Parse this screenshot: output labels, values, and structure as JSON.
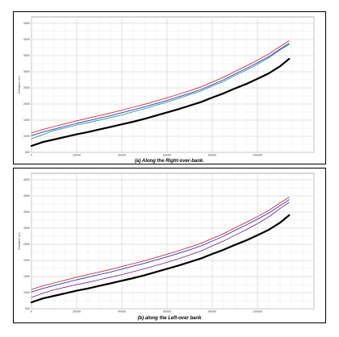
{
  "chart_data": [
    {
      "type": "line",
      "caption": "(a) Along the Right-over-bank.",
      "ylabel": "Elevation (m)",
      "xlabel": "",
      "x_ticks": [
        0,
        20000,
        40000,
        60000,
        80000,
        100000
      ],
      "y_ticks": [
        500,
        1000,
        1500,
        2000,
        2500,
        3000,
        3500,
        4000,
        4500
      ],
      "xlim": [
        0,
        125000
      ],
      "ylim": [
        500,
        4700
      ],
      "grid": true,
      "legend": "none",
      "colors": {
        "terrain": "#000000",
        "wse_a": "#d8282b",
        "wse_b": "#2b37c8",
        "overbank": "#138f8a"
      },
      "series": [
        {
          "key": "terrain",
          "x": [
            0,
            5000,
            10000,
            15000,
            20000,
            25000,
            30000,
            35000,
            40000,
            45000,
            50000,
            55000,
            60000,
            65000,
            70000,
            75000,
            80000,
            85000,
            90000,
            95000,
            100000,
            105000,
            110000,
            114000
          ],
          "values": [
            700,
            820,
            900,
            980,
            1060,
            1130,
            1210,
            1290,
            1370,
            1450,
            1540,
            1640,
            1740,
            1840,
            1950,
            2060,
            2200,
            2330,
            2480,
            2620,
            2780,
            2950,
            3170,
            3400
          ]
        },
        {
          "key": "wse_a",
          "x": [
            0,
            5000,
            10000,
            15000,
            20000,
            25000,
            30000,
            35000,
            40000,
            45000,
            50000,
            55000,
            60000,
            65000,
            70000,
            75000,
            80000,
            85000,
            90000,
            95000,
            100000,
            105000,
            110000,
            114000
          ],
          "values": [
            1100,
            1210,
            1300,
            1390,
            1480,
            1560,
            1640,
            1720,
            1810,
            1900,
            1990,
            2090,
            2190,
            2300,
            2410,
            2530,
            2680,
            2830,
            3010,
            3180,
            3360,
            3550,
            3780,
            3960
          ]
        },
        {
          "key": "wse_b",
          "x": [
            0,
            5000,
            10000,
            15000,
            20000,
            25000,
            30000,
            35000,
            40000,
            45000,
            50000,
            55000,
            60000,
            65000,
            70000,
            75000,
            80000,
            85000,
            90000,
            95000,
            100000,
            105000,
            110000,
            114000
          ],
          "values": [
            1020,
            1130,
            1220,
            1310,
            1400,
            1480,
            1560,
            1640,
            1730,
            1820,
            1910,
            2010,
            2110,
            2220,
            2330,
            2450,
            2600,
            2750,
            2930,
            3100,
            3280,
            3470,
            3700,
            3880
          ]
        },
        {
          "key": "overbank",
          "x": [
            0,
            5000,
            10000,
            15000,
            20000,
            25000,
            30000,
            35000,
            40000,
            45000,
            50000,
            55000,
            60000,
            65000,
            70000,
            75000,
            80000,
            85000,
            90000,
            95000,
            100000,
            105000,
            110000,
            114000
          ],
          "values": [
            920,
            1050,
            1180,
            1260,
            1350,
            1420,
            1500,
            1580,
            1660,
            1760,
            1850,
            1960,
            2060,
            2170,
            2290,
            2400,
            2560,
            2700,
            2880,
            3050,
            3230,
            3430,
            3680,
            3850
          ]
        }
      ]
    },
    {
      "type": "line",
      "caption": "(b) along the Left-over bank",
      "ylabel": "Elevation (m)",
      "xlabel": "",
      "x_ticks": [
        0,
        20000,
        40000,
        60000,
        80000,
        100000
      ],
      "y_ticks": [
        500,
        1000,
        1500,
        2000,
        2500,
        3000,
        3500,
        4000,
        4500
      ],
      "xlim": [
        0,
        125000
      ],
      "ylim": [
        500,
        4700
      ],
      "grid": true,
      "legend": "none",
      "colors": {
        "terrain": "#000000",
        "wse_a": "#d8282b",
        "wse_b": "#2b37c8",
        "overbank": "#7a1a8a"
      },
      "series": [
        {
          "key": "terrain",
          "x": [
            0,
            5000,
            10000,
            15000,
            20000,
            25000,
            30000,
            35000,
            40000,
            45000,
            50000,
            55000,
            60000,
            65000,
            70000,
            75000,
            80000,
            85000,
            90000,
            95000,
            100000,
            105000,
            110000,
            114000
          ],
          "values": [
            700,
            820,
            900,
            980,
            1060,
            1130,
            1210,
            1290,
            1370,
            1450,
            1540,
            1640,
            1740,
            1840,
            1950,
            2060,
            2200,
            2330,
            2480,
            2620,
            2780,
            2950,
            3170,
            3400
          ]
        },
        {
          "key": "wse_a",
          "x": [
            0,
            5000,
            10000,
            15000,
            20000,
            25000,
            30000,
            35000,
            40000,
            45000,
            50000,
            55000,
            60000,
            65000,
            70000,
            75000,
            80000,
            85000,
            90000,
            95000,
            100000,
            105000,
            110000,
            114000
          ],
          "values": [
            1100,
            1210,
            1300,
            1390,
            1480,
            1560,
            1640,
            1720,
            1810,
            1900,
            1990,
            2090,
            2190,
            2300,
            2410,
            2530,
            2680,
            2830,
            3010,
            3180,
            3360,
            3550,
            3780,
            3960
          ]
        },
        {
          "key": "wse_b",
          "x": [
            0,
            5000,
            10000,
            15000,
            20000,
            25000,
            30000,
            35000,
            40000,
            45000,
            50000,
            55000,
            60000,
            65000,
            70000,
            75000,
            80000,
            85000,
            90000,
            95000,
            100000,
            105000,
            110000,
            114000
          ],
          "values": [
            1020,
            1130,
            1220,
            1310,
            1400,
            1480,
            1560,
            1640,
            1730,
            1820,
            1910,
            2010,
            2110,
            2220,
            2330,
            2450,
            2600,
            2750,
            2930,
            3100,
            3280,
            3470,
            3700,
            3880
          ]
        },
        {
          "key": "overbank",
          "x": [
            0,
            5000,
            10000,
            15000,
            20000,
            25000,
            30000,
            35000,
            40000,
            45000,
            50000,
            55000,
            60000,
            65000,
            70000,
            75000,
            80000,
            85000,
            90000,
            95000,
            100000,
            105000,
            110000,
            114000
          ],
          "values": [
            850,
            980,
            1090,
            1170,
            1250,
            1320,
            1400,
            1480,
            1560,
            1650,
            1740,
            1840,
            1940,
            2050,
            2170,
            2290,
            2450,
            2600,
            2780,
            2950,
            3140,
            3350,
            3610,
            3800
          ]
        }
      ]
    }
  ]
}
